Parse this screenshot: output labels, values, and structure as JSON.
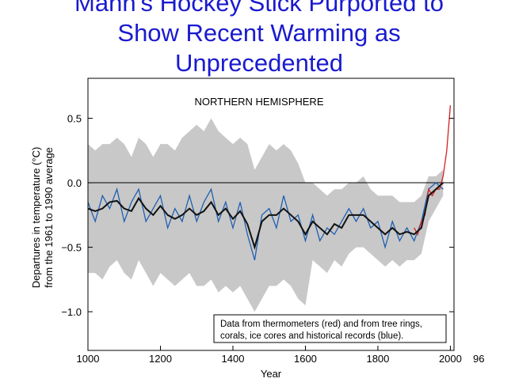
{
  "chart_data": {
    "type": "line",
    "title": [
      "Mann's Hockey Stick Purported to",
      "Show Recent Warming as",
      "Unprecedented"
    ],
    "subtitle": "NORTHERN HEMISPHERE",
    "y_label": [
      "Departures in temperature (°C)",
      "from the 1961 to 1990 average"
    ],
    "x_label": "Year",
    "annotation": [
      "Data from thermometers (red) and from tree rings,",
      "corals, ice cores and historical records (blue)."
    ],
    "stray_text": "96",
    "xlim": [
      1000,
      2010
    ],
    "ylim": [
      -1.3,
      0.81
    ],
    "xticks": [
      1000,
      1200,
      1400,
      1600,
      1800,
      2000
    ],
    "yticks": [
      0.5,
      {
        "value": 0,
        "label": "0.0"
      },
      {
        "value": -0.5,
        "label": "−0.5"
      },
      {
        "value": -1,
        "label": "−1.0"
      }
    ],
    "hline": 0,
    "band": {
      "color": "#c8c8c8",
      "x": [
        1000,
        1020,
        1040,
        1060,
        1080,
        1100,
        1120,
        1140,
        1160,
        1180,
        1200,
        1220,
        1240,
        1260,
        1280,
        1300,
        1320,
        1340,
        1360,
        1380,
        1400,
        1420,
        1440,
        1460,
        1480,
        1500,
        1520,
        1540,
        1560,
        1580,
        1600,
        1620,
        1640,
        1660,
        1680,
        1700,
        1720,
        1740,
        1760,
        1780,
        1800,
        1820,
        1840,
        1860,
        1880,
        1900,
        1920,
        1940,
        1960,
        1980
      ],
      "upper": [
        0.3,
        0.25,
        0.3,
        0.3,
        0.35,
        0.3,
        0.2,
        0.35,
        0.3,
        0.2,
        0.3,
        0.3,
        0.25,
        0.35,
        0.4,
        0.45,
        0.4,
        0.5,
        0.4,
        0.35,
        0.3,
        0.35,
        0.3,
        0.1,
        0.2,
        0.3,
        0.25,
        0.3,
        0.25,
        0.15,
        0.0,
        0.0,
        -0.05,
        -0.1,
        -0.05,
        -0.05,
        0.0,
        0.0,
        0.05,
        -0.05,
        -0.1,
        -0.1,
        -0.1,
        -0.15,
        -0.15,
        -0.15,
        -0.1,
        0.05,
        0.05,
        0.1
      ],
      "lower": [
        -0.7,
        -0.7,
        -0.75,
        -0.65,
        -0.6,
        -0.7,
        -0.75,
        -0.6,
        -0.7,
        -0.8,
        -0.7,
        -0.75,
        -0.8,
        -0.75,
        -0.7,
        -0.8,
        -0.8,
        -0.75,
        -0.85,
        -0.8,
        -0.85,
        -0.8,
        -0.9,
        -1.0,
        -0.9,
        -0.8,
        -0.8,
        -0.75,
        -0.8,
        -0.9,
        -0.95,
        -0.6,
        -0.65,
        -0.7,
        -0.6,
        -0.65,
        -0.55,
        -0.5,
        -0.5,
        -0.55,
        -0.6,
        -0.65,
        -0.6,
        -0.65,
        -0.6,
        -0.6,
        -0.55,
        -0.3,
        -0.2,
        -0.1
      ]
    },
    "series": [
      {
        "color": "#1f5fb0",
        "x": [
          1000,
          1020,
          1040,
          1060,
          1080,
          1100,
          1120,
          1140,
          1160,
          1180,
          1200,
          1220,
          1240,
          1260,
          1280,
          1300,
          1320,
          1340,
          1360,
          1380,
          1400,
          1420,
          1440,
          1460,
          1480,
          1500,
          1520,
          1540,
          1560,
          1580,
          1600,
          1620,
          1640,
          1660,
          1680,
          1700,
          1720,
          1740,
          1760,
          1780,
          1800,
          1820,
          1840,
          1860,
          1880,
          1900,
          1920,
          1940,
          1960,
          1980
        ],
        "values": [
          -0.15,
          -0.3,
          -0.1,
          -0.2,
          -0.05,
          -0.3,
          -0.15,
          -0.05,
          -0.3,
          -0.2,
          -0.1,
          -0.35,
          -0.2,
          -0.3,
          -0.1,
          -0.3,
          -0.15,
          -0.05,
          -0.3,
          -0.15,
          -0.35,
          -0.15,
          -0.4,
          -0.6,
          -0.25,
          -0.2,
          -0.35,
          -0.1,
          -0.3,
          -0.25,
          -0.45,
          -0.25,
          -0.45,
          -0.35,
          -0.4,
          -0.3,
          -0.2,
          -0.3,
          -0.2,
          -0.35,
          -0.3,
          -0.5,
          -0.3,
          -0.45,
          -0.35,
          -0.45,
          -0.3,
          -0.05,
          0.0,
          -0.05
        ]
      },
      {
        "color": "#d42020",
        "x": [
          1900,
          1910,
          1920,
          1930,
          1940,
          1950,
          1960,
          1970,
          1980,
          1990,
          2000
        ],
        "values": [
          -0.35,
          -0.4,
          -0.3,
          -0.25,
          -0.05,
          -0.1,
          -0.05,
          -0.05,
          0.05,
          0.25,
          0.6
        ]
      },
      {
        "color": "#111111",
        "x": [
          1000,
          1020,
          1040,
          1060,
          1080,
          1100,
          1120,
          1140,
          1160,
          1180,
          1200,
          1220,
          1240,
          1260,
          1280,
          1300,
          1320,
          1340,
          1360,
          1380,
          1400,
          1420,
          1440,
          1460,
          1480,
          1500,
          1520,
          1540,
          1560,
          1580,
          1600,
          1620,
          1640,
          1660,
          1680,
          1700,
          1720,
          1740,
          1760,
          1780,
          1800,
          1820,
          1840,
          1860,
          1880,
          1900,
          1920,
          1940,
          1960,
          1980
        ],
        "values": [
          -0.2,
          -0.22,
          -0.2,
          -0.15,
          -0.14,
          -0.2,
          -0.22,
          -0.12,
          -0.2,
          -0.25,
          -0.18,
          -0.25,
          -0.28,
          -0.25,
          -0.2,
          -0.25,
          -0.22,
          -0.15,
          -0.25,
          -0.2,
          -0.28,
          -0.22,
          -0.32,
          -0.5,
          -0.3,
          -0.25,
          -0.25,
          -0.2,
          -0.25,
          -0.3,
          -0.4,
          -0.3,
          -0.35,
          -0.4,
          -0.32,
          -0.35,
          -0.25,
          -0.25,
          -0.25,
          -0.3,
          -0.35,
          -0.4,
          -0.35,
          -0.4,
          -0.38,
          -0.4,
          -0.35,
          -0.1,
          -0.05,
          0.0
        ]
      }
    ]
  }
}
